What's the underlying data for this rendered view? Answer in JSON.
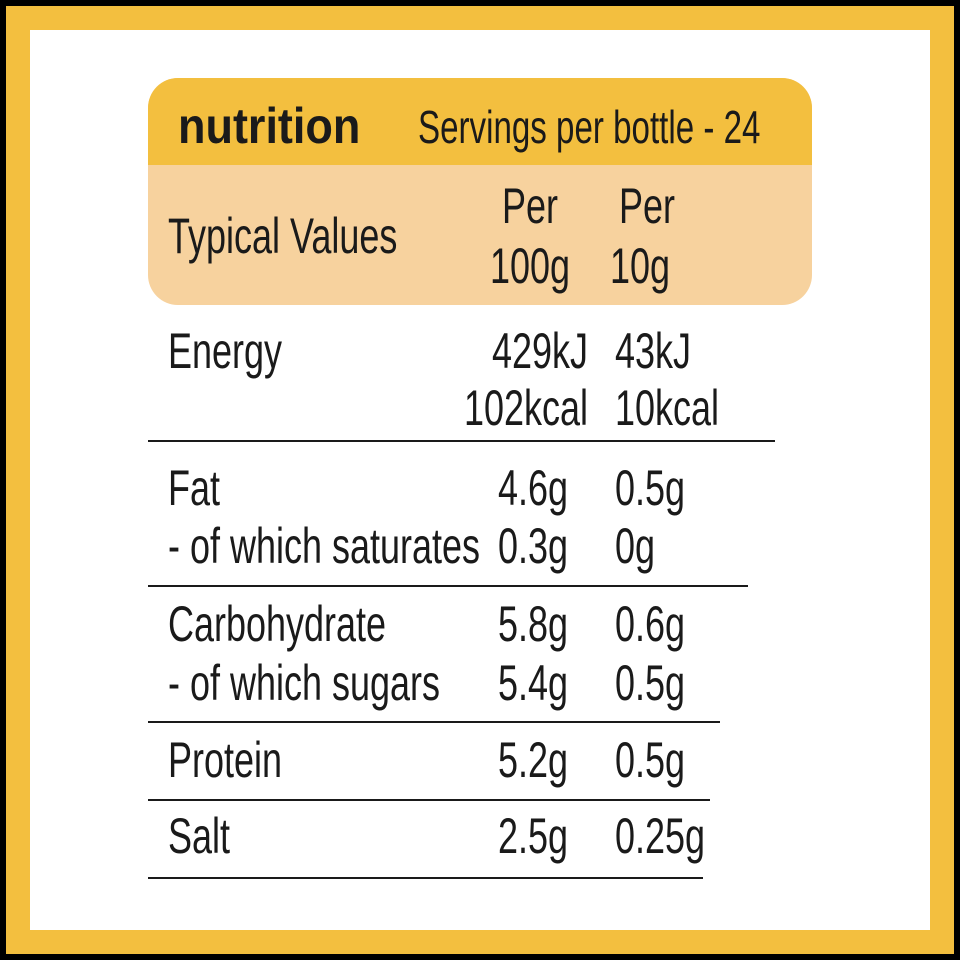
{
  "header": {
    "brand": "nutrition",
    "servings": "Servings per bottle - 24"
  },
  "columns": {
    "label": "Typical Values",
    "per100": [
      "Per",
      "100g"
    ],
    "per10": [
      "Per",
      "10g"
    ]
  },
  "rows": [
    {
      "labels": [
        "Energy"
      ],
      "per100": [
        "429kJ",
        "102kcal"
      ],
      "per10": [
        "43kJ",
        "10kcal"
      ]
    },
    {
      "labels": [
        "Fat",
        "- of which saturates"
      ],
      "per100": [
        "4.6g",
        "0.3g"
      ],
      "per10": [
        "0.5g",
        "0g"
      ]
    },
    {
      "labels": [
        "Carbohydrate",
        "- of which sugars"
      ],
      "per100": [
        "5.8g",
        "5.4g"
      ],
      "per10": [
        "0.6g",
        "0.5g"
      ]
    },
    {
      "labels": [
        "Protein"
      ],
      "per100": [
        "5.2g"
      ],
      "per10": [
        "0.5g"
      ]
    },
    {
      "labels": [
        "Salt"
      ],
      "per100": [
        "2.5g"
      ],
      "per10": [
        "0.25g"
      ]
    }
  ]
}
